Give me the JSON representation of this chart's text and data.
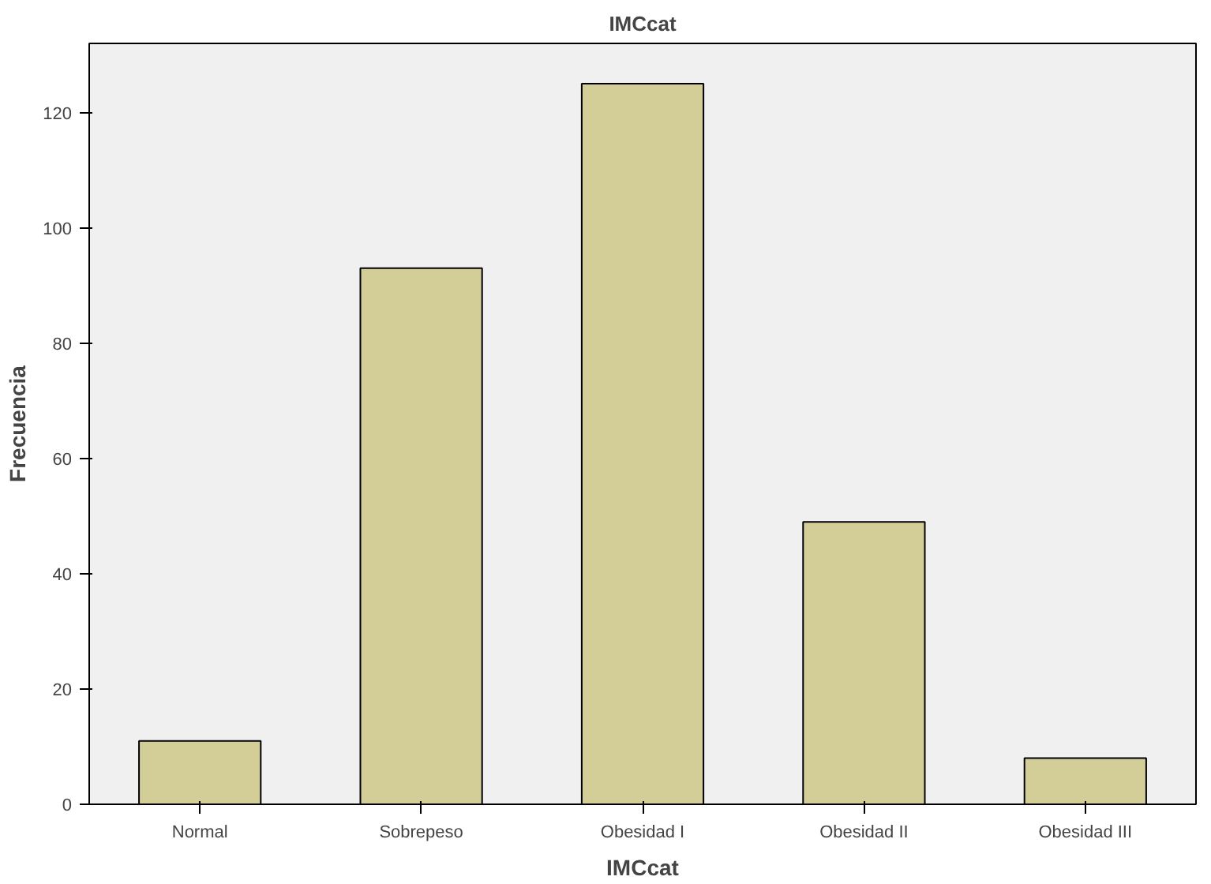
{
  "chart_data": {
    "type": "bar",
    "title": "IMCcat",
    "xlabel": "IMCcat",
    "ylabel": "Frecuencia",
    "categories": [
      "Normal",
      "Sobrepeso",
      "Obesidad I",
      "Obesidad II",
      "Obesidad III"
    ],
    "values": [
      11,
      93,
      125,
      49,
      8
    ],
    "color": "#d3ce97",
    "ylim": [
      0,
      132
    ],
    "yticks": [
      0,
      20,
      40,
      60,
      80,
      100,
      120
    ],
    "grid": false
  }
}
